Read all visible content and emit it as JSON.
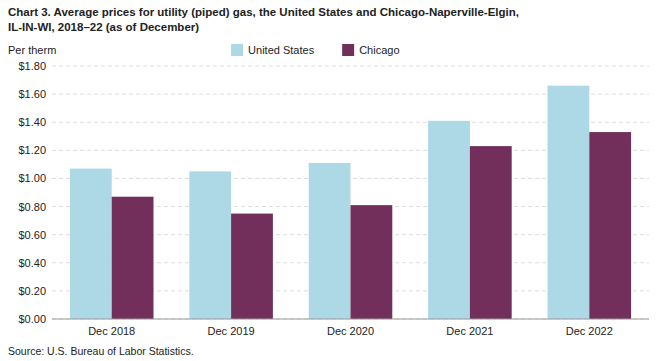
{
  "chart_data": {
    "type": "bar",
    "title": "Chart 3. Average prices for utility (piped) gas, the United States and Chicago-Naperville-Elgin,",
    "subtitle": "IL-IN-WI, 2018–22 (as of December)",
    "y_label": "Per therm",
    "annotations": [
      "Source: U.S. Bureau of Labor Statistics."
    ],
    "categories": [
      "Dec 2018",
      "Dec 2019",
      "Dec 2020",
      "Dec 2021",
      "Dec 2022"
    ],
    "series": [
      {
        "name": "United States",
        "color": "#add8e6",
        "values": [
          1.07,
          1.05,
          1.11,
          1.41,
          1.66
        ]
      },
      {
        "name": "Chicago",
        "color": "#722f5b",
        "values": [
          0.87,
          0.75,
          0.81,
          1.23,
          1.33
        ]
      }
    ],
    "ylim": [
      0,
      1.8
    ],
    "yticks": [
      {
        "value": 0.0,
        "label": "$0.00"
      },
      {
        "value": 0.2,
        "label": "$0.20"
      },
      {
        "value": 0.4,
        "label": "$0.40"
      },
      {
        "value": 0.6,
        "label": "$0.60"
      },
      {
        "value": 0.8,
        "label": "$0.80"
      },
      {
        "value": 1.0,
        "label": "$1.00"
      },
      {
        "value": 1.2,
        "label": "$1.20"
      },
      {
        "value": 1.4,
        "label": "$1.40"
      },
      {
        "value": 1.6,
        "label": "$1.60"
      },
      {
        "value": 1.8,
        "label": "$1.80"
      }
    ],
    "grid": true,
    "legend": "top"
  }
}
